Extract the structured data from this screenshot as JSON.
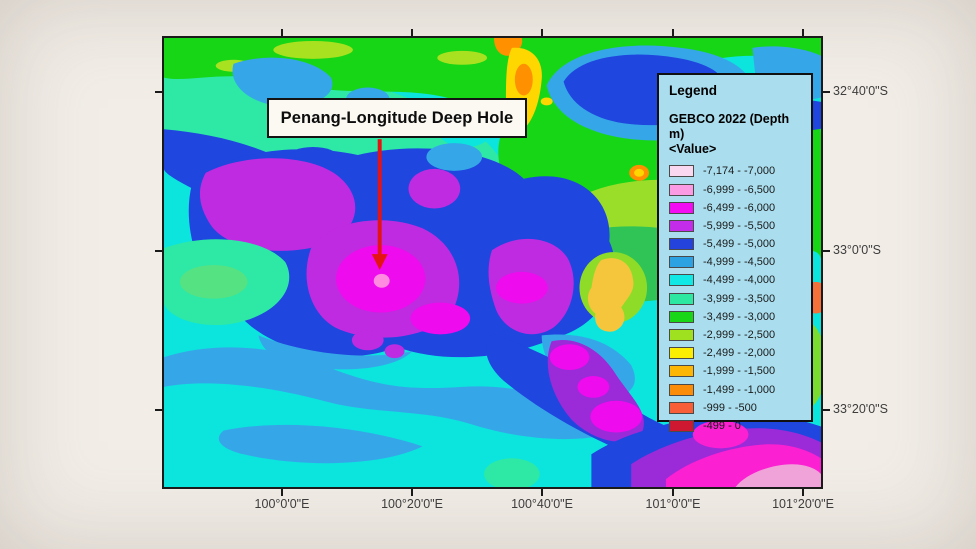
{
  "figure": {
    "annotation_label": "Penang-Longitude Deep Hole"
  },
  "axes": {
    "x_ticks": [
      "100°0'0\"E",
      "100°20'0\"E",
      "100°40'0\"E",
      "101°0'0\"E",
      "101°20'0\"E"
    ],
    "y_ticks": [
      "32°40'0\"S",
      "33°0'0\"S",
      "33°20'0\"S"
    ]
  },
  "legend": {
    "title": "Legend",
    "layer_name": "GEBCO 2022 (Depth m)",
    "value_label": "<Value>",
    "entries": [
      {
        "color": "#fad9f0",
        "label": "-7,174 - -7,000"
      },
      {
        "color": "#fb9be4",
        "label": "-6,999 - -6,500"
      },
      {
        "color": "#f20df2",
        "label": "-6,499 - -6,000"
      },
      {
        "color": "#c32ce8",
        "label": "-5,999 - -5,500"
      },
      {
        "color": "#2443dc",
        "label": "-5,499 - -5,000"
      },
      {
        "color": "#2da2e2",
        "label": "-4,999 - -4,500"
      },
      {
        "color": "#0fe8e4",
        "label": "-4,499 - -4,000"
      },
      {
        "color": "#2ce8a0",
        "label": "-3,999 - -3,500"
      },
      {
        "color": "#19d619",
        "label": "-3,499 - -3,000"
      },
      {
        "color": "#9fe01f",
        "label": "-2,999 - -2,500"
      },
      {
        "color": "#fcee02",
        "label": "-2,499 - -2,000"
      },
      {
        "color": "#fcb603",
        "label": "-1,999 - -1,500"
      },
      {
        "color": "#fa8c08",
        "label": "-1,499 - -1,000"
      },
      {
        "color": "#f85f38",
        "label": "-999 - -500"
      },
      {
        "color": "#ce1831",
        "label": "-499 - 0"
      }
    ]
  },
  "colors": {
    "page_bg": "#f2ede7",
    "legend_bg": "#aadeee",
    "arrow_red": "#e51414",
    "frame": "#1a1a1a"
  }
}
